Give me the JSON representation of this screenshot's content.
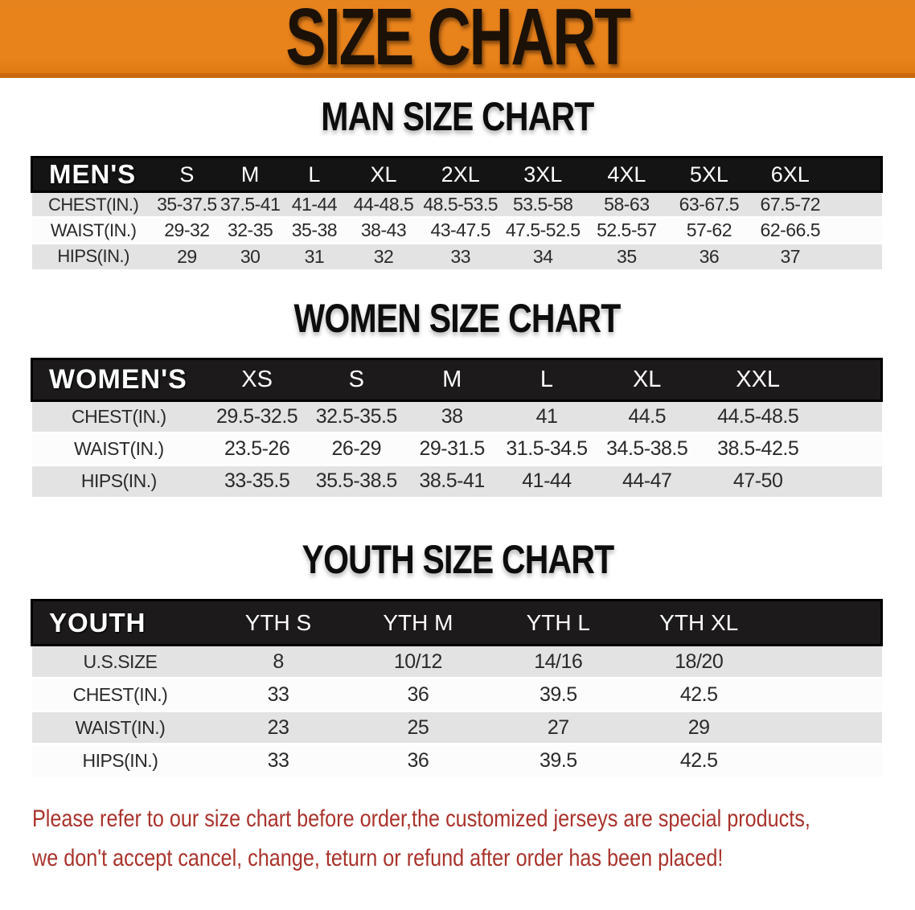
{
  "banner": {
    "title": "SIZE CHART"
  },
  "sections": [
    {
      "id": "men",
      "heading": "MAN SIZE CHART",
      "table": {
        "label": "MEN'S",
        "columns": [
          "S",
          "M",
          "L",
          "XL",
          "2XL",
          "3XL",
          "4XL",
          "5XL",
          "6XL"
        ],
        "rows": [
          {
            "label": "CHEST(IN.)",
            "values": [
              "35-37.5",
              "37.5-41",
              "41-44",
              "44-48.5",
              "48.5-53.5",
              "53.5-58",
              "58-63",
              "63-67.5",
              "67.5-72"
            ]
          },
          {
            "label": "WAIST(IN.)",
            "values": [
              "29-32",
              "32-35",
              "35-38",
              "38-43",
              "43-47.5",
              "47.5-52.5",
              "52.5-57",
              "57-62",
              "62-66.5"
            ]
          },
          {
            "label": "HIPS(IN.)",
            "values": [
              "29",
              "30",
              "31",
              "32",
              "33",
              "34",
              "35",
              "36",
              "37"
            ]
          }
        ]
      }
    },
    {
      "id": "women",
      "heading": "WOMEN SIZE CHART",
      "table": {
        "label": "WOMEN'S",
        "columns": [
          "XS",
          "S",
          "M",
          "L",
          "XL",
          "XXL"
        ],
        "rows": [
          {
            "label": "CHEST(IN.)",
            "values": [
              "29.5-32.5",
              "32.5-35.5",
              "38",
              "41",
              "44.5",
              "44.5-48.5"
            ]
          },
          {
            "label": "WAIST(IN.)",
            "values": [
              "23.5-26",
              "26-29",
              "29-31.5",
              "31.5-34.5",
              "34.5-38.5",
              "38.5-42.5"
            ]
          },
          {
            "label": "HIPS(IN.)",
            "values": [
              "33-35.5",
              "35.5-38.5",
              "38.5-41",
              "41-44",
              "44-47",
              "47-50"
            ]
          }
        ]
      }
    },
    {
      "id": "youth",
      "heading": "YOUTH SIZE CHART",
      "table": {
        "label": "YOUTH",
        "columns": [
          "YTH S",
          "YTH M",
          "YTH L",
          "YTH XL"
        ],
        "rows": [
          {
            "label": "U.S.SIZE",
            "values": [
              "8",
              "10/12",
              "14/16",
              "18/20"
            ]
          },
          {
            "label": "CHEST(IN.)",
            "values": [
              "33",
              "36",
              "39.5",
              "42.5"
            ]
          },
          {
            "label": "WAIST(IN.)",
            "values": [
              "23",
              "25",
              "27",
              "29"
            ]
          },
          {
            "label": "HIPS(IN.)",
            "values": [
              "33",
              "36",
              "39.5",
              "42.5"
            ]
          }
        ]
      }
    }
  ],
  "footer": {
    "line1": "Please refer to our size chart before order,the customized jerseys are special products,",
    "line2": "we don't accept cancel, change, teturn or refund after order has been placed!"
  },
  "colors": {
    "banner_orange": "#e8821b",
    "banner_edge": "#c8690e",
    "banner_text": "#1c1106",
    "bar_black": "#1c1a1a",
    "bar_border": "#000000",
    "row_gray": "#e3e3e3",
    "row_white": "#fcfcfc",
    "cell_text": "#2a2a2a",
    "footer_red": "#a9332c"
  }
}
